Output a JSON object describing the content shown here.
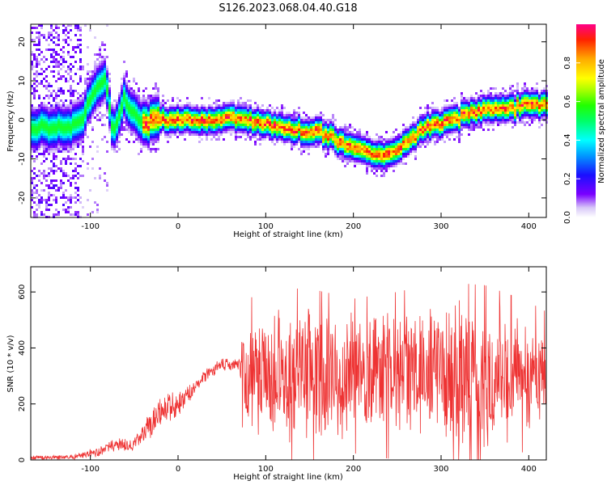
{
  "page": {
    "title": "S126.2023.068.04.40.G18"
  },
  "chart_data": [
    {
      "type": "heatmap",
      "title": "S126.2023.068.04.40.G18",
      "xlabel": "Height of straight line (km)",
      "ylabel": "Frequency (Hz)",
      "xlim": [
        -168,
        420
      ],
      "ylim": [
        -25,
        24.5
      ],
      "xticks": [
        -100,
        0,
        100,
        200,
        300,
        400
      ],
      "yticks": [
        -20,
        -10,
        0,
        10,
        20
      ],
      "colorbar": {
        "label": "Normalized spectral amplitude",
        "range": [
          0,
          1
        ],
        "ticks": [
          0.0,
          0.2,
          0.4,
          0.6,
          0.8
        ]
      },
      "ridge": {
        "x": [
          -125,
          -110,
          -100,
          -90,
          -82,
          -75,
          -68,
          -62,
          -55,
          -45,
          -35,
          -25,
          -15,
          0,
          20,
          40,
          60,
          80,
          100,
          120,
          140,
          160,
          180,
          200,
          220,
          240,
          260,
          280,
          300,
          320,
          340,
          360,
          380,
          400,
          420
        ],
        "y": [
          -2,
          0,
          5,
          9,
          10,
          -3,
          0,
          6,
          3,
          0,
          -1,
          0,
          0,
          0,
          0,
          0,
          1,
          0,
          -1,
          -2,
          -3,
          -3,
          -5,
          -7,
          -9,
          -9,
          -6,
          -2,
          -1,
          1,
          2,
          3,
          3,
          4,
          4
        ]
      },
      "grid": false
    },
    {
      "type": "line",
      "xlabel": "Height of straight line (km)",
      "ylabel": "SNR (10 * v/v)",
      "xlim": [
        -168,
        420
      ],
      "ylim": [
        0,
        690
      ],
      "xticks": [
        -100,
        0,
        100,
        200,
        300,
        400
      ],
      "yticks": [
        0,
        200,
        400,
        600
      ],
      "series": [
        {
          "color": "#ee3333",
          "envelope": {
            "x": [
              -168,
              -120,
              -90,
              -70,
              -60,
              -50,
              -40,
              -30,
              -20,
              -10,
              0,
              10,
              20,
              30,
              40,
              50,
              60,
              70,
              75,
              100,
              150,
              200,
              250,
              300,
              350,
              400,
              420
            ],
            "mean": [
              8,
              10,
              30,
              60,
              50,
              60,
              90,
              130,
              170,
              190,
              200,
              230,
              260,
              300,
              320,
              340,
              340,
              340,
              300,
              300,
              300,
              300,
              300,
              300,
              300,
              300,
              290
            ],
            "spread": [
              8,
              10,
              20,
              30,
              25,
              30,
              40,
              60,
              60,
              60,
              50,
              40,
              30,
              30,
              25,
              25,
              25,
              30,
              220,
              260,
              260,
              230,
              250,
              280,
              270,
              220,
              200
            ]
          }
        }
      ],
      "grid": false
    }
  ]
}
